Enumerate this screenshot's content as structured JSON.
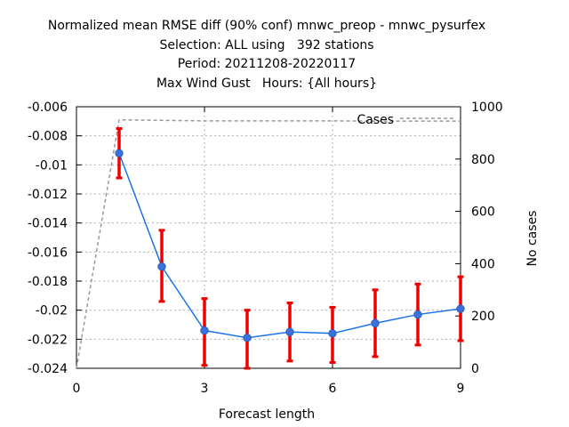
{
  "chart_data": {
    "type": "line",
    "title_lines": [
      "Normalized mean RMSE diff (90% conf) mnwc_preop - mnwc_pysurfex",
      "Selection: ALL using   392 stations",
      "Period: 20211208-20220117",
      "Max Wind Gust   Hours: {All hours}"
    ],
    "xlabel": "Forecast length",
    "ylabel": "",
    "y2label": "No cases",
    "xlim": [
      0,
      9
    ],
    "ylim": [
      -0.024,
      -0.006
    ],
    "y2lim": [
      0,
      1000
    ],
    "x_ticks": [
      "0",
      "3",
      "6",
      "9"
    ],
    "x_tick_values": [
      0,
      3,
      6,
      9
    ],
    "y_ticks": [
      "-0.006",
      "-0.008",
      "-0.01",
      "-0.012",
      "-0.014",
      "-0.016",
      "-0.018",
      "-0.02",
      "-0.022",
      "-0.024"
    ],
    "y_tick_values": [
      -0.006,
      -0.008,
      -0.01,
      -0.012,
      -0.014,
      -0.016,
      -0.018,
      -0.02,
      -0.022,
      -0.024
    ],
    "y2_ticks": [
      "1000",
      "800",
      "600",
      "400",
      "200",
      "0"
    ],
    "y2_tick_values": [
      1000,
      800,
      600,
      400,
      200,
      0
    ],
    "grid": true,
    "series": [
      {
        "color": "#1a73e8",
        "x": [
          1,
          2,
          3,
          4,
          5,
          6,
          7,
          8,
          9
        ],
        "y": [
          -0.0092,
          -0.017,
          -0.0214,
          -0.0219,
          -0.0215,
          -0.0216,
          -0.0209,
          -0.0203,
          -0.0199
        ],
        "err_low": [
          -0.0109,
          -0.0194,
          -0.0238,
          -0.024,
          -0.0235,
          -0.0236,
          -0.0232,
          -0.0224,
          -0.0221
        ],
        "err_high": [
          -0.0075,
          -0.0145,
          -0.0192,
          -0.02,
          -0.0195,
          -0.0198,
          -0.0186,
          -0.0182,
          -0.0177
        ],
        "err_color": "#ee0000"
      },
      {
        "name": "Cases",
        "axis": "y2",
        "style": "dashed",
        "color": "#999999",
        "x": [
          0,
          1,
          2,
          3,
          4,
          5,
          6,
          7,
          8,
          9
        ],
        "y": [
          0,
          950,
          948,
          946,
          946,
          946,
          946,
          945,
          945,
          945
        ]
      }
    ],
    "legend": "top-right"
  }
}
